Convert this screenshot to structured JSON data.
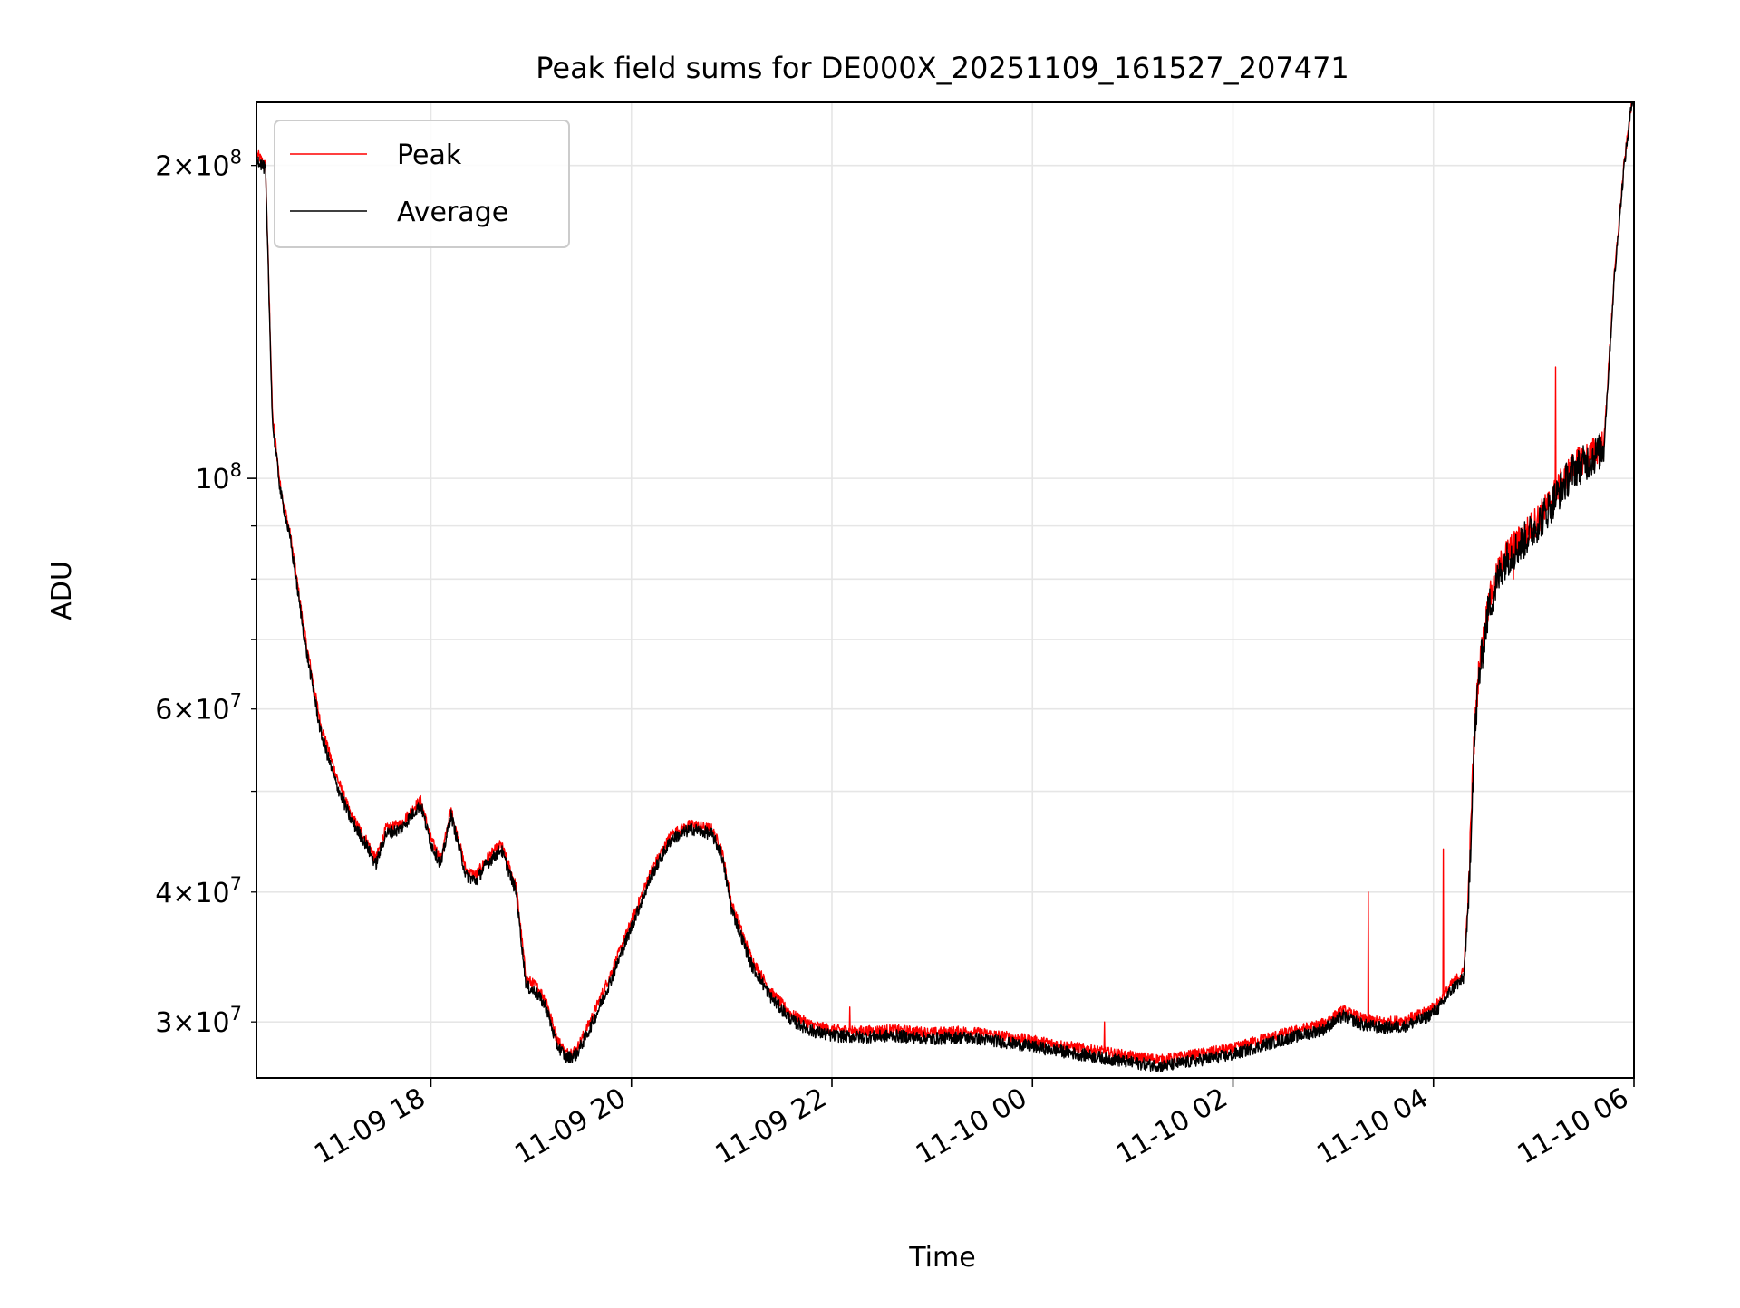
{
  "chart_data": {
    "type": "line",
    "title": "Peak field sums for DE000X_20251109_161527_207471",
    "xlabel": "Time",
    "ylabel": "ADU",
    "yscale": "log",
    "xlim_hours": [
      16.26,
      30.0
    ],
    "ylim": [
      26500000,
      230000000
    ],
    "x_ticks": [
      {
        "hour": 18,
        "label": "11-09 18"
      },
      {
        "hour": 20,
        "label": "11-09 20"
      },
      {
        "hour": 22,
        "label": "11-09 22"
      },
      {
        "hour": 24,
        "label": "11-10 00"
      },
      {
        "hour": 26,
        "label": "11-10 02"
      },
      {
        "hour": 28,
        "label": "11-10 04"
      },
      {
        "hour": 30,
        "label": "11-10 06"
      }
    ],
    "y_ticks_major": [
      {
        "value": 100000000,
        "base": "10",
        "exp": "8"
      }
    ],
    "y_ticks_minor_labeled": [
      {
        "value": 30000000,
        "mant": "3",
        "base": "10",
        "exp": "7"
      },
      {
        "value": 40000000,
        "mant": "4",
        "base": "10",
        "exp": "7"
      },
      {
        "value": 60000000,
        "mant": "6",
        "base": "10",
        "exp": "7"
      },
      {
        "value": 200000000,
        "mant": "2",
        "base": "10",
        "exp": "8"
      }
    ],
    "y_ticks_minor_unlabeled": [
      50000000,
      70000000,
      80000000,
      90000000
    ],
    "grid": true,
    "legend_position": "top-left",
    "series": [
      {
        "name": "Peak",
        "color": "#ff0000",
        "x_hours": [
          16.27,
          16.35,
          16.42,
          16.5,
          16.6,
          16.75,
          16.9,
          17.05,
          17.2,
          17.35,
          17.45,
          17.55,
          17.7,
          17.85,
          17.9,
          18.0,
          18.1,
          18.2,
          18.35,
          18.45,
          18.55,
          18.7,
          18.85,
          18.95,
          19.05,
          19.15,
          19.25,
          19.35,
          19.45,
          19.55,
          19.65,
          19.8,
          20.0,
          20.2,
          20.4,
          20.6,
          20.8,
          20.9,
          21.0,
          21.2,
          21.4,
          21.6,
          21.8,
          22.0,
          22.3,
          22.6,
          23.0,
          23.3,
          23.6,
          24.0,
          24.3,
          24.6,
          25.0,
          25.3,
          25.6,
          26.0,
          26.3,
          26.6,
          26.9,
          27.1,
          27.3,
          27.5,
          27.7,
          27.9,
          28.05,
          28.2,
          28.3,
          28.35,
          28.4,
          28.45,
          28.55,
          28.7,
          28.9,
          29.1,
          29.25,
          29.4,
          29.55,
          29.7,
          29.8,
          29.9,
          30.0
        ],
        "y": [
          205000000,
          200000000,
          115000000,
          98000000,
          88000000,
          70000000,
          58000000,
          52000000,
          47500000,
          45000000,
          43000000,
          46000000,
          46500000,
          48500000,
          49000000,
          45000000,
          43000000,
          48000000,
          42000000,
          41500000,
          43000000,
          44500000,
          40500000,
          33000000,
          32500000,
          31500000,
          29000000,
          28000000,
          28200000,
          29500000,
          31000000,
          33500000,
          37500000,
          42000000,
          45500000,
          46500000,
          46000000,
          44000000,
          39000000,
          34500000,
          32000000,
          30500000,
          29800000,
          29500000,
          29400000,
          29500000,
          29300000,
          29400000,
          29200000,
          28800000,
          28500000,
          28200000,
          27800000,
          27600000,
          27900000,
          28300000,
          28900000,
          29400000,
          29900000,
          30800000,
          30200000,
          30000000,
          30100000,
          30600000,
          31300000,
          32800000,
          33500000,
          40000000,
          55000000,
          65000000,
          76000000,
          84000000,
          88000000,
          93000000,
          98000000,
          103000000,
          105000000,
          108000000,
          155000000,
          200000000,
          240000000
        ]
      },
      {
        "name": "Average",
        "color": "#000000",
        "x_hours": [
          16.27,
          16.35,
          16.42,
          16.5,
          16.6,
          16.75,
          16.9,
          17.05,
          17.2,
          17.35,
          17.45,
          17.55,
          17.7,
          17.85,
          17.9,
          18.0,
          18.1,
          18.2,
          18.35,
          18.45,
          18.55,
          18.7,
          18.85,
          18.95,
          19.05,
          19.15,
          19.25,
          19.35,
          19.45,
          19.55,
          19.65,
          19.8,
          20.0,
          20.2,
          20.4,
          20.6,
          20.8,
          20.9,
          21.0,
          21.2,
          21.4,
          21.6,
          21.8,
          22.0,
          22.3,
          22.6,
          23.0,
          23.3,
          23.6,
          24.0,
          24.3,
          24.6,
          25.0,
          25.3,
          25.6,
          26.0,
          26.3,
          26.6,
          26.9,
          27.1,
          27.3,
          27.5,
          27.7,
          27.9,
          28.05,
          28.2,
          28.3,
          28.35,
          28.4,
          28.45,
          28.55,
          28.7,
          28.9,
          29.1,
          29.25,
          29.4,
          29.55,
          29.7,
          29.8,
          29.9,
          30.0
        ],
        "y": [
          203000000,
          198000000,
          113000000,
          97000000,
          87000000,
          69000000,
          57000000,
          51000000,
          47000000,
          44500000,
          42500000,
          45500000,
          46000000,
          48000000,
          48500000,
          44500000,
          42500000,
          47500000,
          41500000,
          41000000,
          42500000,
          44000000,
          40000000,
          32500000,
          32000000,
          31000000,
          28600000,
          27700000,
          27900000,
          29100000,
          30500000,
          33000000,
          37000000,
          41500000,
          45000000,
          46000000,
          45500000,
          43500000,
          38500000,
          34000000,
          31600000,
          30100000,
          29400000,
          29100000,
          29000000,
          29100000,
          28900000,
          29000000,
          28800000,
          28400000,
          28100000,
          27800000,
          27400000,
          27200000,
          27500000,
          27900000,
          28500000,
          29000000,
          29500000,
          30400000,
          29800000,
          29600000,
          29700000,
          30200000,
          30900000,
          32400000,
          33000000,
          39000000,
          54000000,
          64000000,
          75000000,
          83000000,
          87000000,
          92000000,
          97000000,
          102000000,
          104000000,
          107000000,
          154000000,
          199000000,
          239000000
        ]
      }
    ]
  }
}
